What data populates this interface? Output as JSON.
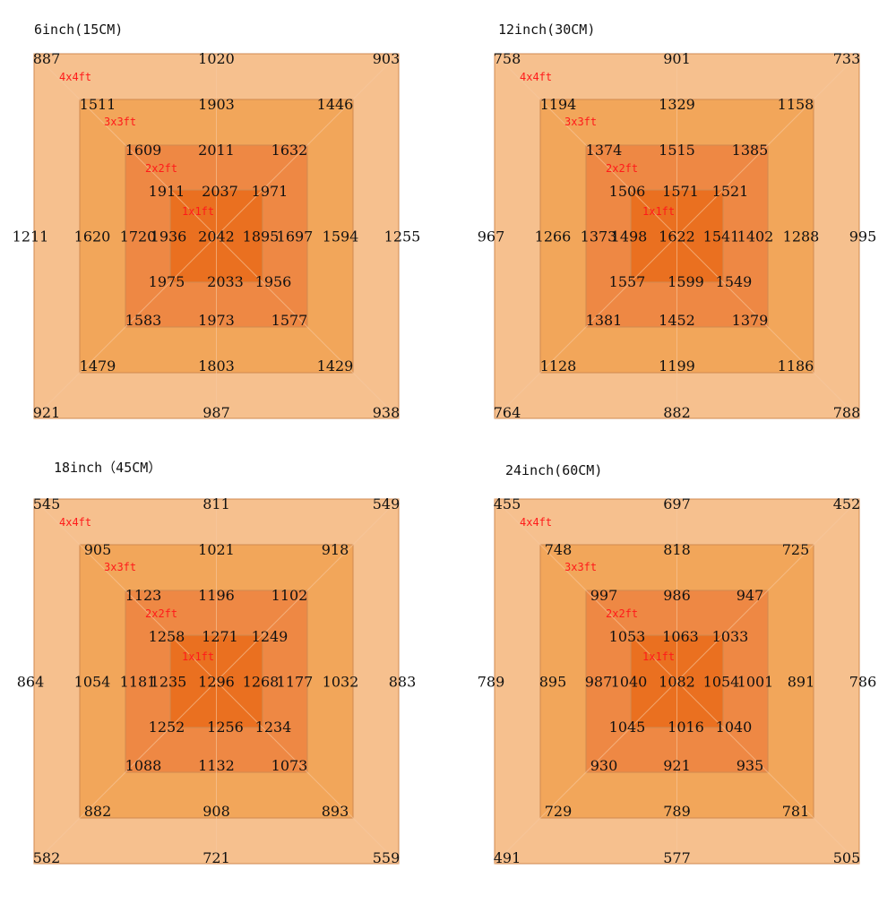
{
  "colors": {
    "sq_4x4": "#f6c08e",
    "sq_3x3": "#f2a65a",
    "sq_2x2": "#ee8844",
    "sq_1x1": "#ea7020",
    "border": "#d08a50",
    "label_red": "#ff1a1a"
  },
  "size_labels": [
    "4x4ft",
    "3x3ft",
    "2x2ft",
    "1x1ft"
  ],
  "panels": [
    {
      "title": "6inch(15CM)",
      "rings": [
        {
          "tl": "887",
          "t": "1020",
          "tr": "903",
          "l": "1211",
          "r": "1255",
          "bl": "921",
          "b": "987",
          "br": "938"
        },
        {
          "tl": "1511",
          "t": "1903",
          "tr": "1446",
          "l": "1620",
          "r": "1594",
          "bl": "1479",
          "b": "1803",
          "br": "1429"
        },
        {
          "tl": "1609",
          "t": "2011",
          "tr": "1632",
          "l": "1720",
          "r": "1697",
          "bl": "1583",
          "b": "1973",
          "br": "1577"
        },
        {
          "tl": "1911",
          "t": "2037",
          "tr": "1971",
          "l": "1936",
          "r": "1895",
          "bl": "1975",
          "b": "2033",
          "br": "1956"
        }
      ],
      "center": "2042"
    },
    {
      "title": "12inch(30CM)",
      "rings": [
        {
          "tl": "758",
          "t": "901",
          "tr": "733",
          "l": "967",
          "r": "995",
          "bl": "764",
          "b": "882",
          "br": "788"
        },
        {
          "tl": "1194",
          "t": "1329",
          "tr": "1158",
          "l": "1266",
          "r": "1288",
          "bl": "1128",
          "b": "1199",
          "br": "1186"
        },
        {
          "tl": "1374",
          "t": "1515",
          "tr": "1385",
          "l": "1373",
          "r": "1402",
          "bl": "1381",
          "b": "1452",
          "br": "1379"
        },
        {
          "tl": "1506",
          "t": "1571",
          "tr": "1521",
          "l": "1498",
          "r": "1541",
          "bl": "1557",
          "b": "1599",
          "br": "1549"
        }
      ],
      "center": "1622"
    },
    {
      "title": "18inch（45CM）",
      "rings": [
        {
          "tl": "545",
          "t": "811",
          "tr": "549",
          "l": "864",
          "r": "883",
          "bl": "582",
          "b": "721",
          "br": "559"
        },
        {
          "tl": "905",
          "t": "1021",
          "tr": "918",
          "l": "1054",
          "r": "1032",
          "bl": "882",
          "b": "908",
          "br": "893"
        },
        {
          "tl": "1123",
          "t": "1196",
          "tr": "1102",
          "l": "1181",
          "r": "1177",
          "bl": "1088",
          "b": "1132",
          "br": "1073"
        },
        {
          "tl": "1258",
          "t": "1271",
          "tr": "1249",
          "l": "1235",
          "r": "1268",
          "bl": "1252",
          "b": "1256",
          "br": "1234"
        }
      ],
      "center": "1296"
    },
    {
      "title": "24inch(60CM)",
      "rings": [
        {
          "tl": "455",
          "t": "697",
          "tr": "452",
          "l": "789",
          "r": "786",
          "bl": "491",
          "b": "577",
          "br": "505"
        },
        {
          "tl": "748",
          "t": "818",
          "tr": "725",
          "l": "895",
          "r": "891",
          "bl": "729",
          "b": "789",
          "br": "781"
        },
        {
          "tl": "997",
          "t": "986",
          "tr": "947",
          "l": "987",
          "r": "1001",
          "bl": "930",
          "b": "921",
          "br": "935"
        },
        {
          "tl": "1053",
          "t": "1063",
          "tr": "1033",
          "l": "1040",
          "r": "1054",
          "bl": "1045",
          "b": "1016",
          "br": "1040"
        }
      ],
      "center": "1082"
    }
  ]
}
